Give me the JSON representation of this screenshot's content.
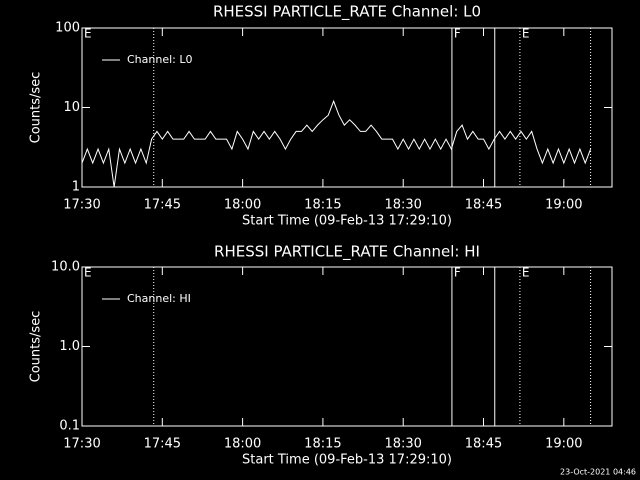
{
  "chart_data": [
    {
      "type": "line",
      "title": "RHESSI PARTICLE_RATE Channel: L0",
      "x_label": "Start Time (09-Feb-13 17:29:10)",
      "y_label": "Counts/sec",
      "log_y": true,
      "legend": "upper-left",
      "xlim": [
        1050,
        1149
      ],
      "xticks": [
        {
          "value": 1050,
          "label": "17:30"
        },
        {
          "value": 1065,
          "label": "17:45"
        },
        {
          "value": 1080,
          "label": "18:00"
        },
        {
          "value": 1095,
          "label": "18:15"
        },
        {
          "value": 1110,
          "label": "18:30"
        },
        {
          "value": 1125,
          "label": "18:45"
        },
        {
          "value": 1140,
          "label": "19:00"
        }
      ],
      "ylim": [
        1,
        100
      ],
      "yticks": [
        1,
        10,
        100
      ],
      "x": [
        1050,
        1051,
        1052,
        1053,
        1054,
        1055,
        1056,
        1057,
        1058,
        1059,
        1060,
        1061,
        1062,
        1063,
        1064,
        1065,
        1066,
        1067,
        1068,
        1069,
        1070,
        1071,
        1072,
        1073,
        1074,
        1075,
        1076,
        1077,
        1078,
        1079,
        1080,
        1081,
        1082,
        1083,
        1084,
        1085,
        1086,
        1087,
        1088,
        1089,
        1090,
        1091,
        1092,
        1093,
        1094,
        1095,
        1096,
        1097,
        1098,
        1099,
        1100,
        1101,
        1102,
        1103,
        1104,
        1105,
        1106,
        1107,
        1108,
        1109,
        1110,
        1111,
        1112,
        1113,
        1114,
        1115,
        1116,
        1117,
        1118,
        1119,
        1120,
        1121,
        1122,
        1123,
        1124,
        1125,
        1126,
        1127,
        1128,
        1129,
        1130,
        1131,
        1132,
        1133,
        1134,
        1135,
        1136,
        1137,
        1138,
        1139,
        1140,
        1141,
        1142,
        1143,
        1144,
        1145
      ],
      "series": [
        {
          "name": "Channel: L0",
          "color": "#ffffff",
          "values": [
            2,
            3,
            2,
            3,
            2,
            3,
            1,
            3,
            2,
            3,
            2,
            3,
            2,
            4,
            5,
            4,
            5,
            4,
            4,
            4,
            5,
            4,
            4,
            4,
            5,
            4,
            4,
            4,
            3,
            5,
            4,
            3,
            5,
            4,
            5,
            4,
            5,
            4,
            3,
            4,
            5,
            5,
            6,
            5,
            6,
            7,
            8,
            12,
            8,
            6,
            7,
            6,
            5,
            5,
            6,
            5,
            4,
            4,
            4,
            3,
            4,
            3,
            4,
            3,
            4,
            3,
            4,
            3,
            4,
            3,
            5,
            6,
            4,
            5,
            4,
            4,
            3,
            4,
            5,
            4,
            5,
            4,
            5,
            4,
            5,
            3,
            2,
            3,
            2,
            3,
            2,
            3,
            2,
            3,
            2,
            3
          ]
        }
      ],
      "markers": [
        {
          "x": 1063.4,
          "style": "dotted"
        },
        {
          "x": 1119.1,
          "style": "solid"
        },
        {
          "x": 1127.1,
          "style": "solid"
        },
        {
          "x": 1131.8,
          "style": "dotted"
        },
        {
          "x": 1145,
          "style": "dotted"
        }
      ],
      "flags": [
        {
          "x": 1050,
          "label": "E"
        },
        {
          "x": 1119.1,
          "label": "F"
        },
        {
          "x": 1131.8,
          "label": "E"
        }
      ]
    },
    {
      "type": "line",
      "title": "RHESSI PARTICLE_RATE Channel: HI",
      "x_label": "Start Time (09-Feb-13 17:29:10)",
      "y_label": "Counts/sec",
      "log_y": true,
      "legend": "upper-left",
      "xlim": [
        1050,
        1149
      ],
      "xticks": [
        {
          "value": 1050,
          "label": "17:30"
        },
        {
          "value": 1065,
          "label": "17:45"
        },
        {
          "value": 1080,
          "label": "18:00"
        },
        {
          "value": 1095,
          "label": "18:15"
        },
        {
          "value": 1110,
          "label": "18:30"
        },
        {
          "value": 1125,
          "label": "18:45"
        },
        {
          "value": 1140,
          "label": "19:00"
        }
      ],
      "ylim": [
        0.1,
        10
      ],
      "yticks": [
        0.1,
        {
          "value": 1,
          "label": "1.0"
        },
        {
          "value": 10,
          "label": "10.0"
        }
      ],
      "x": [],
      "series": [
        {
          "name": "Channel: HI",
          "color": "#ffffff",
          "values": []
        }
      ],
      "markers": [
        {
          "x": 1063.4,
          "style": "dotted"
        },
        {
          "x": 1119.1,
          "style": "solid"
        },
        {
          "x": 1127.1,
          "style": "solid"
        },
        {
          "x": 1131.8,
          "style": "dotted"
        },
        {
          "x": 1145,
          "style": "dotted"
        }
      ],
      "flags": [
        {
          "x": 1050,
          "label": "E"
        },
        {
          "x": 1119.1,
          "label": "F"
        },
        {
          "x": 1131.8,
          "label": "E"
        }
      ]
    }
  ],
  "footer": "23-Oct-2021 04:46"
}
